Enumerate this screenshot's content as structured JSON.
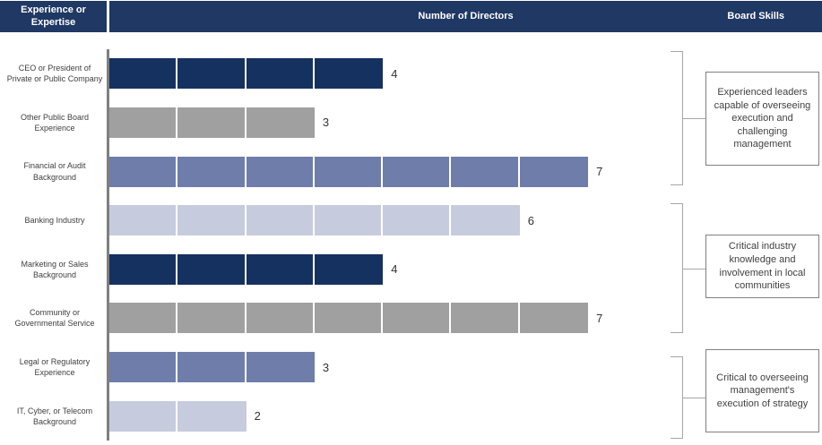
{
  "header": {
    "experience_label": "Experience or Expertise",
    "directors_label": "Number of Directors",
    "skills_label": "Board Skills"
  },
  "palette": {
    "header_bg": "#1f3864",
    "navy": "#15315f",
    "gray": "#a0a0a0",
    "slate": "#6f7dab",
    "lavender": "#c7cbde",
    "axis": "#7f7f7f",
    "bracket": "#a6a6a6",
    "box_border": "#808080",
    "text": "#404040"
  },
  "chart_data": {
    "type": "bar",
    "orientation": "horizontal",
    "title": "Number of Directors",
    "categories": [
      "CEO or President of Private or Public Company",
      "Other Public Board Experience",
      "Financial or Audit Background",
      "Banking Industry",
      "Marketing or Sales Background",
      "Community or Governmental Service",
      "Legal or Regulatory Experience",
      "IT, Cyber, or Telecom Background"
    ],
    "values": [
      4,
      3,
      7,
      6,
      4,
      7,
      3,
      2
    ],
    "colors": [
      "navy",
      "gray",
      "slate",
      "lavender",
      "navy",
      "gray",
      "slate",
      "lavender"
    ],
    "segmented": true,
    "segment_unit": 1,
    "xlim": [
      0,
      10
    ],
    "value_labels_shown": true,
    "grid": false,
    "legend": false
  },
  "board_skills": [
    {
      "text": "Experienced leaders capable of overseeing execution and challenging management",
      "row_start": 1,
      "row_end": 3
    },
    {
      "text": "Critical industry knowledge and involvement in local communities",
      "row_start": 4,
      "row_end": 6
    },
    {
      "text": "Critical to overseeing management's execution of strategy",
      "row_start": 7,
      "row_end": 8
    }
  ]
}
